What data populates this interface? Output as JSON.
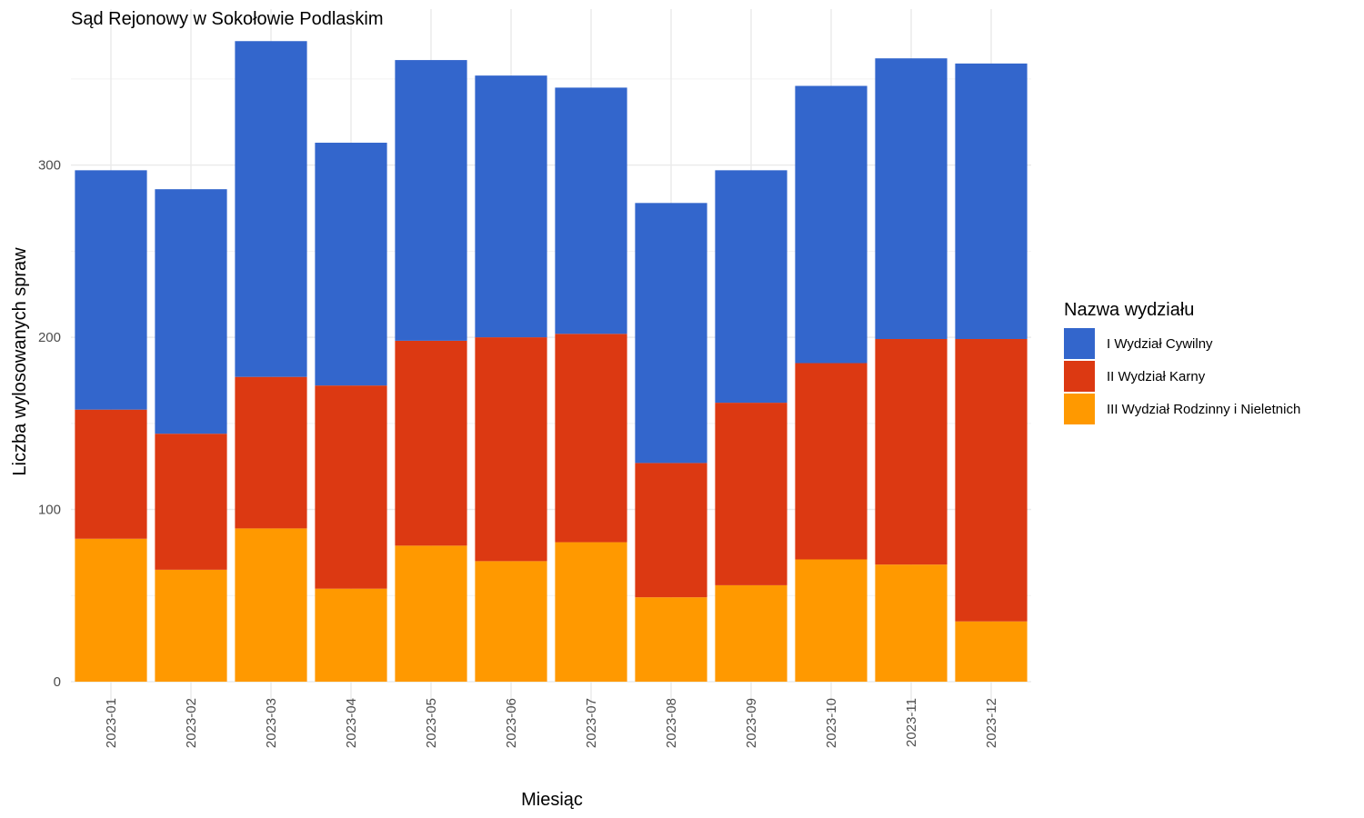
{
  "chart_data": {
    "type": "bar",
    "stacked": true,
    "title": "Sąd Rejonowy w Sokołowie Podlaskim",
    "xlabel": "Miesiąc",
    "ylabel": "Liczba wylosowanych spraw",
    "ylim": [
      0,
      375
    ],
    "yticks": [
      "0",
      "100",
      "200",
      "300"
    ],
    "grid": true,
    "legend_title": "Nazwa wydziału",
    "legend_position": "right",
    "categories": [
      "2023-01",
      "2023-02",
      "2023-03",
      "2023-04",
      "2023-05",
      "2023-06",
      "2023-07",
      "2023-08",
      "2023-09",
      "2023-10",
      "2023-11",
      "2023-12"
    ],
    "series": [
      {
        "name": "III Wydział Rodzinny i Nieletnich",
        "color": "#FF9900",
        "values": [
          83,
          65,
          89,
          54,
          79,
          70,
          81,
          49,
          56,
          71,
          68,
          35
        ]
      },
      {
        "name": "II Wydział Karny",
        "color": "#DC3912",
        "values": [
          75,
          79,
          88,
          118,
          119,
          130,
          121,
          78,
          106,
          114,
          131,
          164
        ]
      },
      {
        "name": "I Wydział Cywilny",
        "color": "#3366CC",
        "values": [
          139,
          142,
          195,
          141,
          163,
          152,
          143,
          151,
          135,
          161,
          163,
          160
        ]
      }
    ]
  }
}
